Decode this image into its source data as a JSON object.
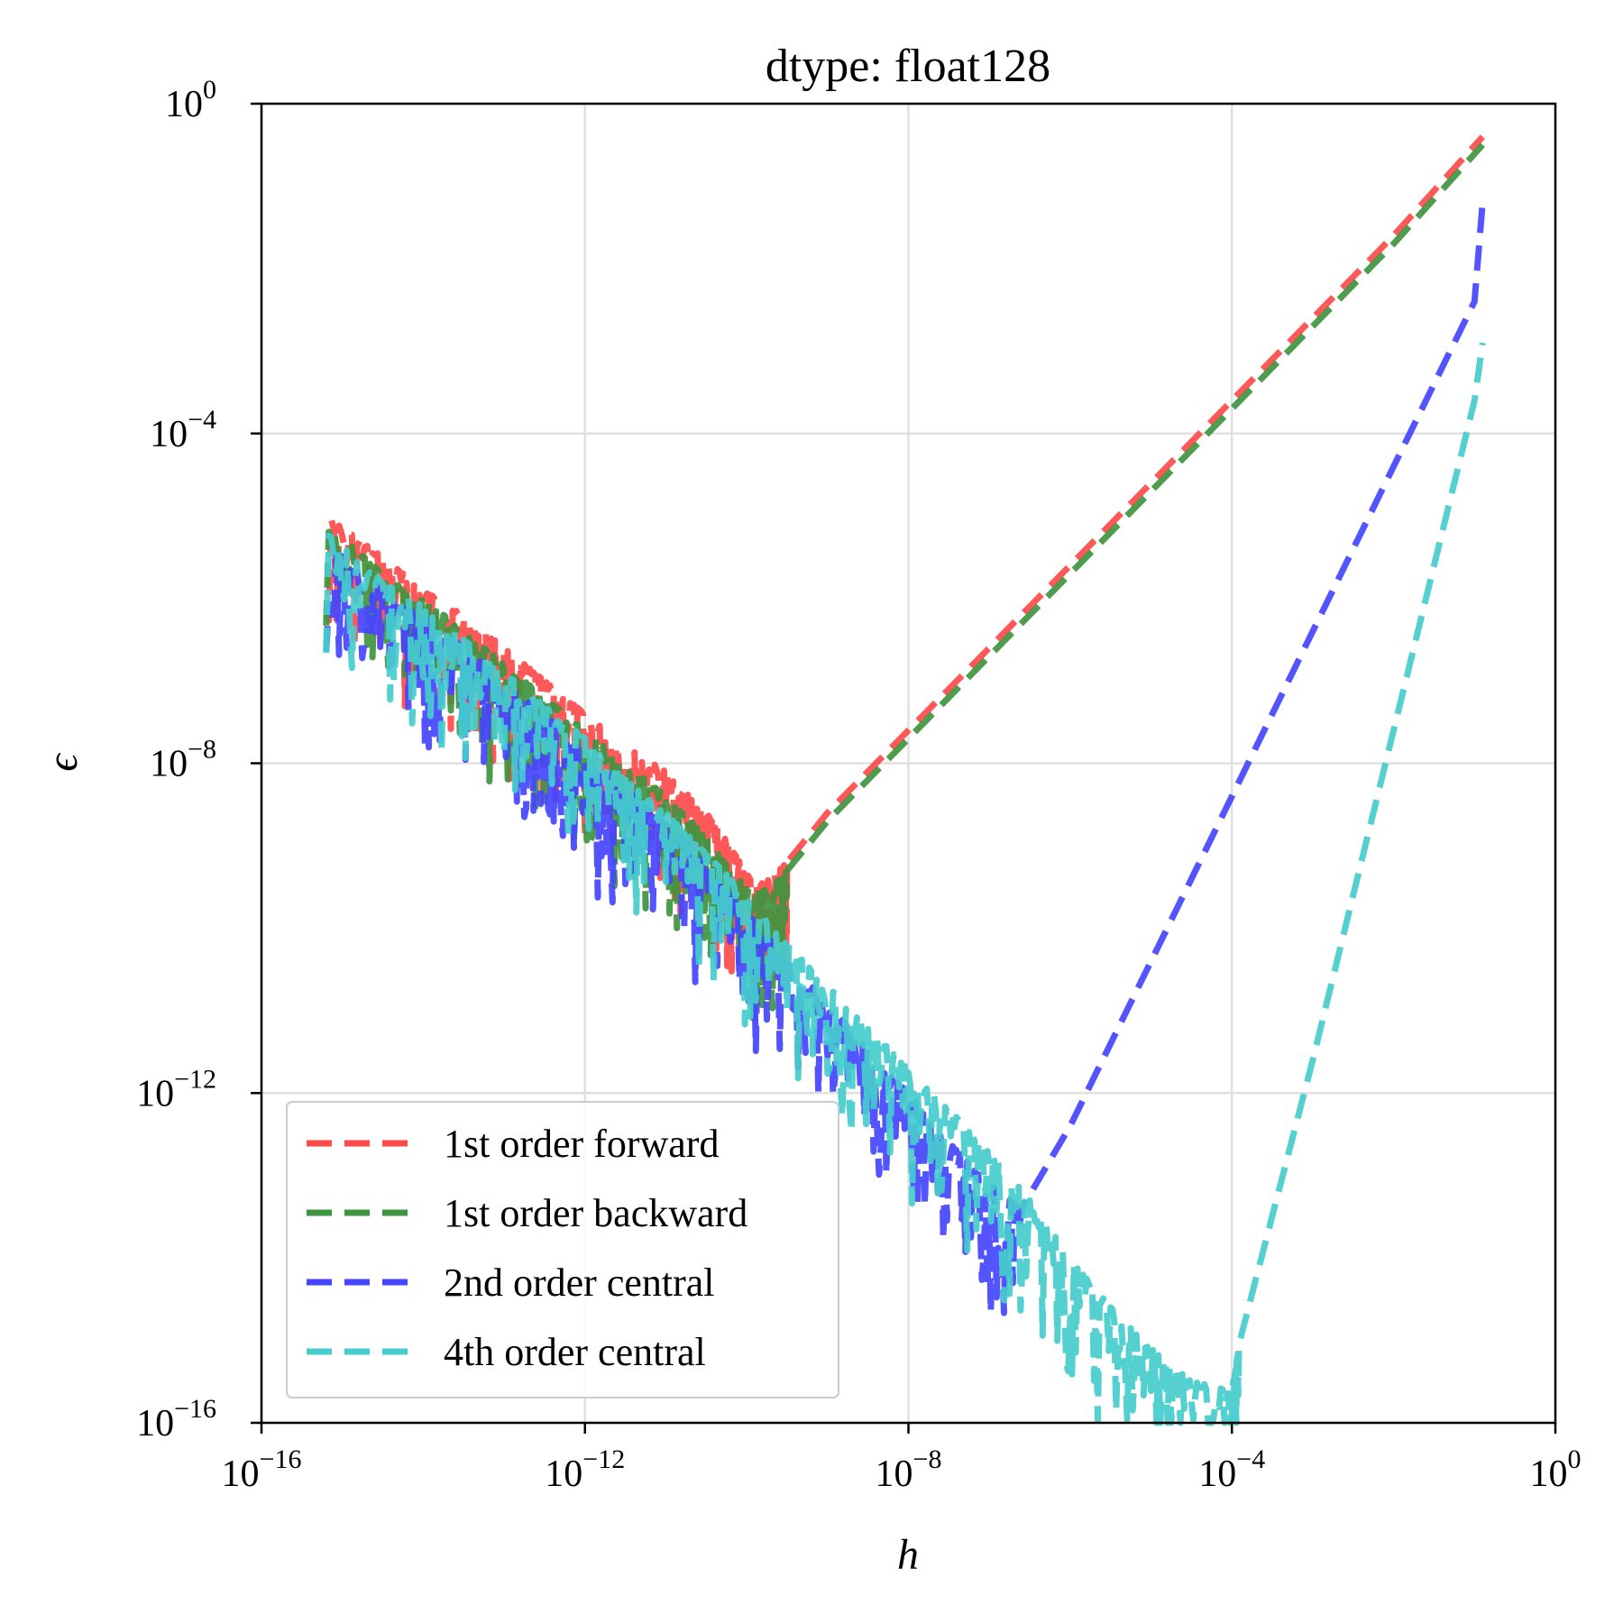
{
  "chart_data": {
    "type": "line",
    "title": "dtype: float128",
    "xlabel": "h",
    "ylabel": "ϵ",
    "xscale": "log",
    "yscale": "log",
    "xlim_exp": [
      -16,
      0
    ],
    "ylim_exp": [
      -16,
      0
    ],
    "x_ticks": [
      {
        "base": "10",
        "exp": "−16"
      },
      {
        "base": "10",
        "exp": "−12"
      },
      {
        "base": "10",
        "exp": "−8"
      },
      {
        "base": "10",
        "exp": "−4"
      },
      {
        "base": "10",
        "exp": "0"
      }
    ],
    "y_ticks": [
      {
        "base": "10",
        "exp": "−16"
      },
      {
        "base": "10",
        "exp": "−12"
      },
      {
        "base": "10",
        "exp": "−8"
      },
      {
        "base": "10",
        "exp": "−4"
      },
      {
        "base": "10",
        "exp": "0"
      }
    ],
    "grid": true,
    "legend_position": "lower-left",
    "series": [
      {
        "name": "1st order forward",
        "color": "#ff4a4a",
        "points": [
          [
            -15.2,
            -5.0
          ],
          [
            -14.5,
            -5.5
          ],
          [
            -14.0,
            -5.9
          ],
          [
            -13.5,
            -6.2
          ],
          [
            -13.0,
            -6.6
          ],
          [
            -12.5,
            -7.0
          ],
          [
            -12.0,
            -7.4
          ],
          [
            -11.5,
            -7.8
          ],
          [
            -11.0,
            -8.1
          ],
          [
            -10.5,
            -8.6
          ],
          [
            -10.2,
            -9.0
          ],
          [
            -9.9,
            -9.5
          ],
          [
            -9.7,
            -9.4
          ],
          [
            -9.5,
            -9.2
          ],
          [
            -9.0,
            -8.6
          ],
          [
            -8.0,
            -7.6
          ],
          [
            -6.0,
            -5.6
          ],
          [
            -4.0,
            -3.6
          ],
          [
            -2.0,
            -1.6
          ],
          [
            -0.9,
            -0.4
          ]
        ]
      },
      {
        "name": "1st order backward",
        "color": "#3f943f",
        "points": [
          [
            -15.2,
            -5.1
          ],
          [
            -14.5,
            -5.7
          ],
          [
            -14.0,
            -6.0
          ],
          [
            -13.5,
            -6.4
          ],
          [
            -13.0,
            -6.8
          ],
          [
            -12.5,
            -7.2
          ],
          [
            -12.0,
            -7.6
          ],
          [
            -11.5,
            -8.0
          ],
          [
            -11.0,
            -8.4
          ],
          [
            -10.5,
            -8.9
          ],
          [
            -10.2,
            -9.3
          ],
          [
            -9.9,
            -9.6
          ],
          [
            -9.7,
            -9.5
          ],
          [
            -9.5,
            -9.3
          ],
          [
            -9.0,
            -8.7
          ],
          [
            -8.0,
            -7.7
          ],
          [
            -6.0,
            -5.7
          ],
          [
            -4.0,
            -3.7
          ],
          [
            -2.0,
            -1.7
          ],
          [
            -0.9,
            -0.5
          ]
        ]
      },
      {
        "name": "2nd order central",
        "color": "#4545ff",
        "points": [
          [
            -15.2,
            -5.3
          ],
          [
            -14.5,
            -5.9
          ],
          [
            -14.0,
            -6.2
          ],
          [
            -13.5,
            -6.6
          ],
          [
            -13.0,
            -7.0
          ],
          [
            -12.5,
            -7.4
          ],
          [
            -12.0,
            -7.9
          ],
          [
            -11.5,
            -8.3
          ],
          [
            -11.0,
            -8.7
          ],
          [
            -10.5,
            -9.2
          ],
          [
            -10.0,
            -9.8
          ],
          [
            -9.5,
            -10.4
          ],
          [
            -9.0,
            -10.9
          ],
          [
            -8.5,
            -11.5
          ],
          [
            -8.0,
            -12.0
          ],
          [
            -7.5,
            -12.6
          ],
          [
            -7.0,
            -13.1
          ],
          [
            -6.6,
            -13.4
          ],
          [
            -6.0,
            -12.4
          ],
          [
            -5.0,
            -10.4
          ],
          [
            -4.0,
            -8.4
          ],
          [
            -3.0,
            -6.4
          ],
          [
            -2.0,
            -4.4
          ],
          [
            -1.0,
            -2.4
          ],
          [
            -0.9,
            -1.2
          ]
        ]
      },
      {
        "name": "4th order central",
        "color": "#45cccc",
        "points": [
          [
            -15.2,
            -5.2
          ],
          [
            -14.5,
            -5.8
          ],
          [
            -14.0,
            -6.1
          ],
          [
            -13.5,
            -6.5
          ],
          [
            -13.0,
            -6.9
          ],
          [
            -12.5,
            -7.3
          ],
          [
            -12.0,
            -7.7
          ],
          [
            -11.5,
            -8.2
          ],
          [
            -11.0,
            -8.6
          ],
          [
            -10.5,
            -9.1
          ],
          [
            -10.0,
            -9.6
          ],
          [
            -9.5,
            -10.2
          ],
          [
            -9.0,
            -10.7
          ],
          [
            -8.5,
            -11.2
          ],
          [
            -8.0,
            -11.7
          ],
          [
            -7.5,
            -12.2
          ],
          [
            -7.0,
            -12.7
          ],
          [
            -6.5,
            -13.3
          ],
          [
            -6.0,
            -14.0
          ],
          [
            -5.5,
            -14.6
          ],
          [
            -5.0,
            -15.1
          ],
          [
            -4.5,
            -15.5
          ],
          [
            -4.0,
            -15.6
          ],
          [
            -3.9,
            -15.0
          ],
          [
            -3.0,
            -11.6
          ],
          [
            -2.0,
            -7.6
          ],
          [
            -1.0,
            -3.6
          ],
          [
            -0.9,
            -2.9
          ]
        ]
      }
    ]
  }
}
